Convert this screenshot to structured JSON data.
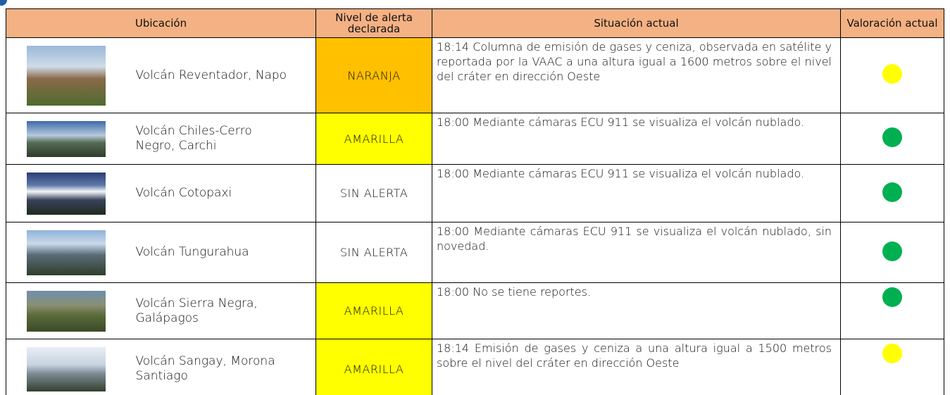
{
  "table": {
    "headers": [
      "Ubicación",
      "Nivel de alerta declarada",
      "Situación actual",
      "Valoración actual"
    ],
    "rows": [
      {
        "location": "Volcán Reventador, Napo",
        "alert": "NARANJA",
        "alert_color": "#ffc000",
        "situation": "18:14 Columna de emisión de gases y ceniza, observada en satélite y reportada por la VAAC a una altura igual a 1600 metros sobre el nivel del cráter en dirección Oeste",
        "status_color": "#ffff00"
      },
      {
        "location": "Volcán Chiles-Cerro Negro, Carchi",
        "alert": "AMARILLA",
        "alert_color": "#ffff00",
        "situation": "18:00 Mediante cámaras ECU 911 se visualiza el volcán nublado.",
        "status_color": "#00b050"
      },
      {
        "location": "Volcán Cotopaxi",
        "alert": "SIN ALERTA",
        "alert_color": "#ffffff",
        "situation": "18:00 Mediante cámaras ECU 911 se visualiza el volcán nublado.",
        "status_color": "#00b050"
      },
      {
        "location": "Volcán Tungurahua",
        "alert": "SIN ALERTA",
        "alert_color": "#ffffff",
        "situation": "18:00 Mediante cámaras ECU 911 se visualiza el volcán nublado, sin novedad.",
        "status_color": "#00b050"
      },
      {
        "location": "Volcán Sierra Negra, Galápagos",
        "alert": "AMARILLA",
        "alert_color": "#ffff00",
        "situation": "18:00 No se tiene reportes.",
        "status_color": "#00b050"
      },
      {
        "location": "Volcán Sangay, Morona Santiago",
        "alert": "AMARILLA",
        "alert_color": "#ffff00",
        "situation": "18:14 Emisión de gases y ceniza a una altura igual a 1500 metros sobre el nivel del cráter en dirección Oeste",
        "status_color": "#ffff00"
      }
    ]
  }
}
